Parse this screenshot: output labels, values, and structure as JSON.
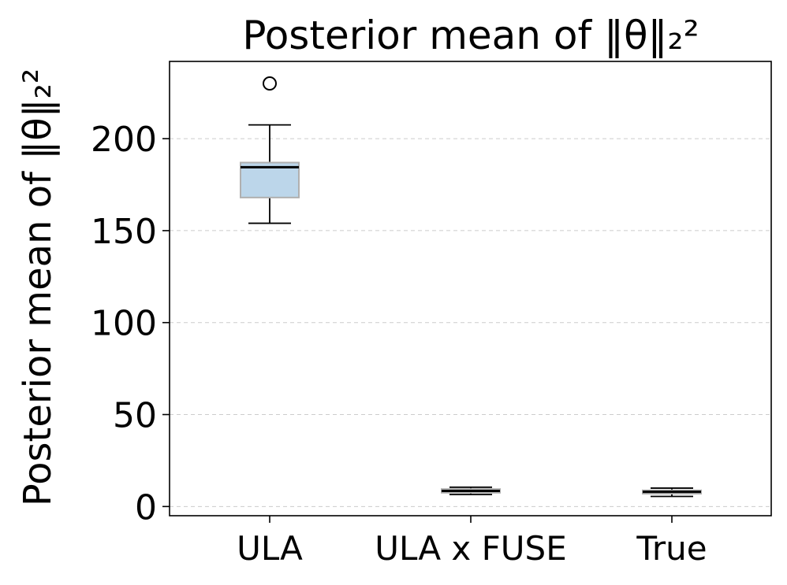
{
  "chart_data": {
    "type": "box",
    "title": "Posterior mean of ‖θ‖₂²",
    "xlabel": "",
    "ylabel": "Posterior mean of ‖θ‖₂²",
    "ylim": [
      -5,
      242
    ],
    "yticks": [
      0,
      50,
      100,
      150,
      200
    ],
    "ytick_labels": [
      "0",
      "50",
      "100",
      "150",
      "200"
    ],
    "grid": "y-dashed",
    "categories": [
      "ULA",
      "ULA x FUSE",
      "True"
    ],
    "boxes": [
      {
        "category": "ULA",
        "whisker_low": 154,
        "q1": 168,
        "median": 184.5,
        "q3": 187,
        "whisker_high": 207.5,
        "outliers": [
          230
        ]
      },
      {
        "category": "ULA x FUSE",
        "whisker_low": 6.5,
        "q1": 7.5,
        "median": 8.5,
        "q3": 9.5,
        "whisker_high": 10.5,
        "outliers": []
      },
      {
        "category": "True",
        "whisker_low": 5.5,
        "q1": 7,
        "median": 8,
        "q3": 8.8,
        "whisker_high": 10,
        "outliers": []
      }
    ],
    "colors": {
      "box_fill": "#bcd6ea",
      "box_edge": "#b0b0b0",
      "median": "#000000",
      "grid": "#cccccc"
    }
  }
}
